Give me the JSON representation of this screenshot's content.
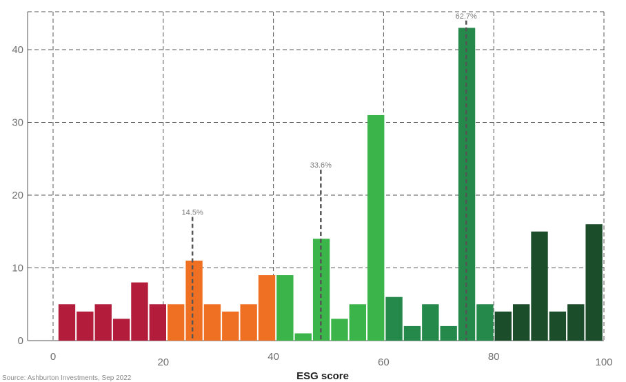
{
  "chart_data": {
    "type": "bar",
    "title": "",
    "xlabel": "ESG score",
    "ylabel": "",
    "xlim": [
      0,
      100
    ],
    "ylim": [
      0,
      45
    ],
    "x_ticks": [
      "0",
      "20",
      "40",
      "60",
      "80",
      "100"
    ],
    "y_ticks": [
      "0",
      "10",
      "20",
      "30",
      "40"
    ],
    "grid": true,
    "bins": [
      {
        "x": 2.5,
        "value": 5,
        "color": "#b31c3b"
      },
      {
        "x": 5.8,
        "value": 4,
        "color": "#b31c3b"
      },
      {
        "x": 9.1,
        "value": 5,
        "color": "#b31c3b"
      },
      {
        "x": 12.4,
        "value": 3,
        "color": "#b31c3b"
      },
      {
        "x": 15.7,
        "value": 8,
        "color": "#b31c3b"
      },
      {
        "x": 19.0,
        "value": 5,
        "color": "#b31c3b"
      },
      {
        "x": 22.3,
        "value": 5,
        "color": "#f07023"
      },
      {
        "x": 25.6,
        "value": 11,
        "color": "#f07023"
      },
      {
        "x": 28.9,
        "value": 5,
        "color": "#f07023"
      },
      {
        "x": 32.2,
        "value": 4,
        "color": "#f07023"
      },
      {
        "x": 35.5,
        "value": 5,
        "color": "#f07023"
      },
      {
        "x": 38.8,
        "value": 9,
        "color": "#f07023"
      },
      {
        "x": 42.1,
        "value": 9,
        "color": "#3bb54a"
      },
      {
        "x": 45.4,
        "value": 1,
        "color": "#3bb54a"
      },
      {
        "x": 48.7,
        "value": 14,
        "color": "#3bb54a"
      },
      {
        "x": 52.0,
        "value": 3,
        "color": "#3bb54a"
      },
      {
        "x": 55.3,
        "value": 5,
        "color": "#3bb54a"
      },
      {
        "x": 58.6,
        "value": 31,
        "color": "#3bb54a"
      },
      {
        "x": 61.9,
        "value": 6,
        "color": "#24894a"
      },
      {
        "x": 65.2,
        "value": 2,
        "color": "#24894a"
      },
      {
        "x": 68.5,
        "value": 5,
        "color": "#24894a"
      },
      {
        "x": 71.8,
        "value": 2,
        "color": "#24894a"
      },
      {
        "x": 75.1,
        "value": 43,
        "color": "#24894a"
      },
      {
        "x": 78.4,
        "value": 5,
        "color": "#24894a"
      },
      {
        "x": 81.7,
        "value": 4,
        "color": "#1b4d2b"
      },
      {
        "x": 85.0,
        "value": 5,
        "color": "#1b4d2b"
      },
      {
        "x": 88.3,
        "value": 15,
        "color": "#1b4d2b"
      },
      {
        "x": 91.6,
        "value": 4,
        "color": "#1b4d2b"
      },
      {
        "x": 94.9,
        "value": 5,
        "color": "#1b4d2b"
      },
      {
        "x": 98.2,
        "value": 16,
        "color": "#1b4d2b"
      }
    ],
    "markers": [
      {
        "x": 25.3,
        "top": 17,
        "label": "14.5%"
      },
      {
        "x": 48.6,
        "top": 23.5,
        "label": "33.6%"
      },
      {
        "x": 75.0,
        "top": 44,
        "label": "62.7%"
      }
    ]
  },
  "source": "Source: Ashburton Investments, Sep 2022"
}
